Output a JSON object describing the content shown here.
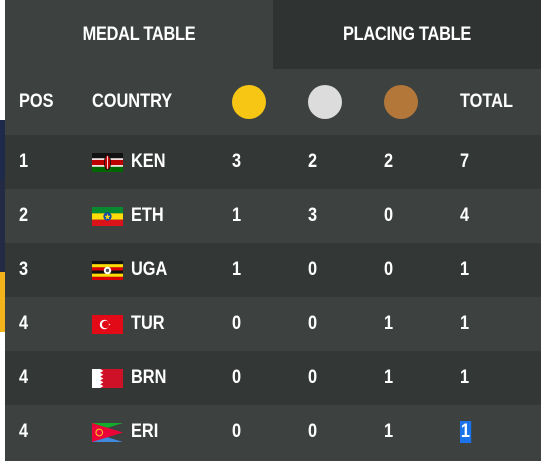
{
  "tabs": {
    "medal_table": "MEDAL TABLE",
    "placing_table": "PLACING TABLE"
  },
  "header": {
    "pos": "POS",
    "country": "COUNTRY",
    "total": "TOTAL",
    "gold_color": "#f7c614",
    "silver_color": "#dcdcdc",
    "bronze_color": "#b4773a"
  },
  "rows": [
    {
      "pos": "1",
      "country": "KEN",
      "flag": "kenya-flag-icon",
      "gold": "3",
      "silver": "2",
      "bronze": "2",
      "total": "7"
    },
    {
      "pos": "2",
      "country": "ETH",
      "flag": "ethiopia-flag-icon",
      "gold": "1",
      "silver": "3",
      "bronze": "0",
      "total": "4"
    },
    {
      "pos": "3",
      "country": "UGA",
      "flag": "uganda-flag-icon",
      "gold": "1",
      "silver": "0",
      "bronze": "0",
      "total": "1"
    },
    {
      "pos": "4",
      "country": "TUR",
      "flag": "turkey-flag-icon",
      "gold": "0",
      "silver": "0",
      "bronze": "1",
      "total": "1"
    },
    {
      "pos": "4",
      "country": "BRN",
      "flag": "bahrain-flag-icon",
      "gold": "0",
      "silver": "0",
      "bronze": "1",
      "total": "1"
    },
    {
      "pos": "4",
      "country": "ERI",
      "flag": "eritrea-flag-icon",
      "gold": "0",
      "silver": "0",
      "bronze": "1",
      "total": "1"
    }
  ],
  "colors": {
    "panel": "#3d4241",
    "row_alt": "#333736",
    "selection": "#1a73e8"
  }
}
